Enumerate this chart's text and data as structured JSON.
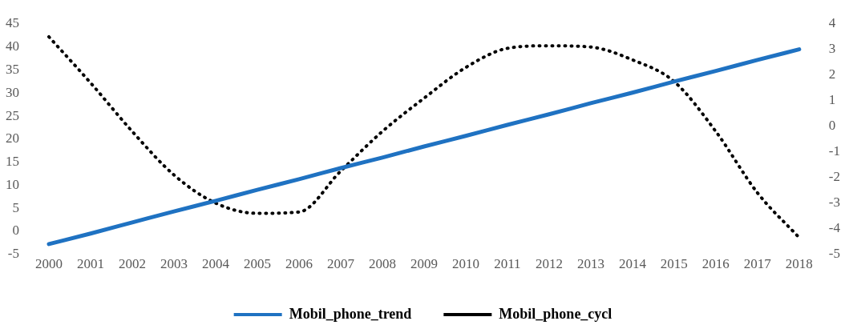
{
  "chart_data": {
    "type": "line",
    "categories": [
      "2000",
      "2001",
      "2002",
      "2003",
      "2004",
      "2005",
      "2006",
      "2007",
      "2008",
      "2009",
      "2010",
      "2011",
      "2012",
      "2013",
      "2014",
      "2015",
      "2016",
      "2017",
      "2018"
    ],
    "series": [
      {
        "name": "Mobil_phone_trend",
        "color": "#1f72c2",
        "line_style": "solid",
        "values": [
          -2.8,
          -0.5,
          1.9,
          4.3,
          6.6,
          9.0,
          11.3,
          13.7,
          16.0,
          18.4,
          20.7,
          23.1,
          25.4,
          27.8,
          30.1,
          32.5,
          34.8,
          37.2,
          39.5
        ]
      },
      {
        "name": "Mobil_phone_cycl",
        "color": "#000000",
        "axis": "y2",
        "line_style": "dotted",
        "values": [
          3.5,
          1.7,
          -0.2,
          -1.9,
          -3.0,
          -3.4,
          -3.35,
          -1.75,
          -0.2,
          1.1,
          2.3,
          3.05,
          3.15,
          3.1,
          2.6,
          1.75,
          -0.2,
          -2.6,
          -4.35
        ]
      }
    ],
    "ylim": [
      -5,
      45
    ],
    "yticks": [
      -5,
      0,
      5,
      10,
      15,
      20,
      25,
      30,
      35,
      40,
      45
    ],
    "y2lim": [
      -5,
      4
    ],
    "y2ticks": [
      -5,
      -4,
      -3,
      -2,
      -1,
      0,
      1,
      2,
      3,
      4
    ],
    "grid": false,
    "legend": "bottom",
    "marker": "none"
  }
}
